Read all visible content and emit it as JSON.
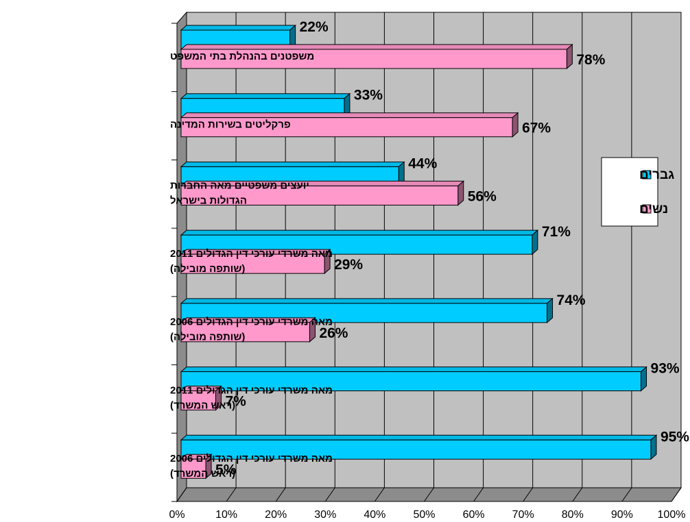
{
  "chart_data": {
    "type": "bar",
    "orientation": "horizontal",
    "three_d": true,
    "categories": [
      [
        "משפטנים בהנהלת בתי המשפט"
      ],
      [
        "פרקליטים בשירות המדינה"
      ],
      [
        "יועצים משפטיים מאה החברות",
        "הגדולות בישראל"
      ],
      [
        "מאה משרדי עורכי דין הגדולים 2011",
        "(שותפה מובילה)"
      ],
      [
        "מאה משרדי עורכי דין הגדולים 2006",
        "(שותפה מובילה)"
      ],
      [
        "מאה משרדי עורכי דין הגדולים 2011",
        "(ראש המשרד)"
      ],
      [
        "מאה משרדי עורכי דין הגדולים 2006",
        "(ראש המשרד)"
      ]
    ],
    "series": [
      {
        "name": "גברים",
        "color": "#00CCFF",
        "values": [
          22,
          33,
          44,
          71,
          74,
          93,
          95
        ],
        "labels": [
          "22%",
          "33%",
          "44%",
          "71%",
          "74%",
          "93%",
          "95%"
        ]
      },
      {
        "name": "נשים",
        "color": "#FF99CC",
        "values": [
          78,
          67,
          56,
          29,
          26,
          7,
          5
        ],
        "labels": [
          "78%",
          "67%",
          "56%",
          "29%",
          "26%",
          "7%",
          "5%"
        ]
      }
    ],
    "xticks": [
      "0%",
      "10%",
      "20%",
      "30%",
      "40%",
      "50%",
      "60%",
      "70%",
      "80%",
      "90%",
      "100%"
    ],
    "xlim": [
      0,
      100
    ],
    "grid": true,
    "legend_position": "right",
    "title": "",
    "xlabel": "",
    "ylabel": ""
  }
}
